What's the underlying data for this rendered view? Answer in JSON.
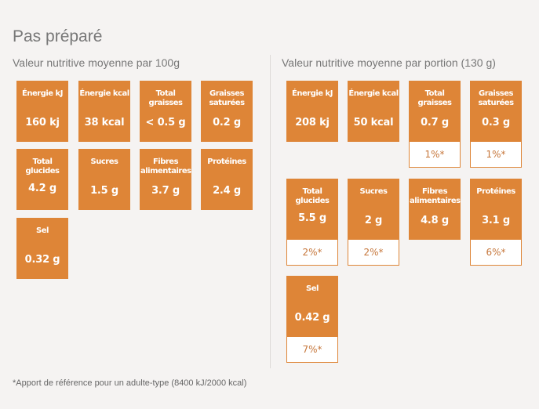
{
  "title": "Pas préparé",
  "per100": {
    "heading": "Valeur nutritive moyenne par  100g",
    "tiles": [
      {
        "label": "Énergie kJ",
        "value": "160 kj"
      },
      {
        "label": "Énergie kcal",
        "value": "38 kcal"
      },
      {
        "label": "Total graisses",
        "value": "< 0.5 g"
      },
      {
        "label": "Graisses saturées",
        "value": "0.2 g"
      },
      {
        "label": "Total glucides",
        "value": "4.2 g"
      },
      {
        "label": "Sucres",
        "value": "1.5 g"
      },
      {
        "label": "Fibres alimentaires",
        "value": "3.7 g"
      },
      {
        "label": "Protéines",
        "value": "2.4 g"
      },
      {
        "label": "Sel",
        "value": "0.32 g"
      }
    ]
  },
  "perPortion": {
    "heading": "Valeur nutritive moyenne par portion (130 g)",
    "tiles": [
      {
        "label": "Énergie kJ",
        "value": "208 kj"
      },
      {
        "label": "Énergie kcal",
        "value": "50 kcal"
      },
      {
        "label": "Total graisses",
        "value": "0.7 g",
        "pct": "1%*"
      },
      {
        "label": "Graisses saturées",
        "value": "0.3 g",
        "pct": "1%*"
      },
      {
        "label": "Total glucides",
        "value": "5.5 g",
        "pct": "2%*"
      },
      {
        "label": "Sucres",
        "value": "2 g",
        "pct": "2%*"
      },
      {
        "label": "Fibres alimentaires",
        "value": "4.8 g"
      },
      {
        "label": "Protéines",
        "value": "3.1 g",
        "pct": "6%*"
      },
      {
        "label": "Sel",
        "value": "0.42 g",
        "pct": "7%*"
      }
    ]
  },
  "footnote": "*Apport de référence pour un adulte-type (8400 kJ/2000 kcal)",
  "colors": {
    "tile": "#de8537",
    "pct_text": "#c6763a",
    "background": "#f5f3f2"
  }
}
